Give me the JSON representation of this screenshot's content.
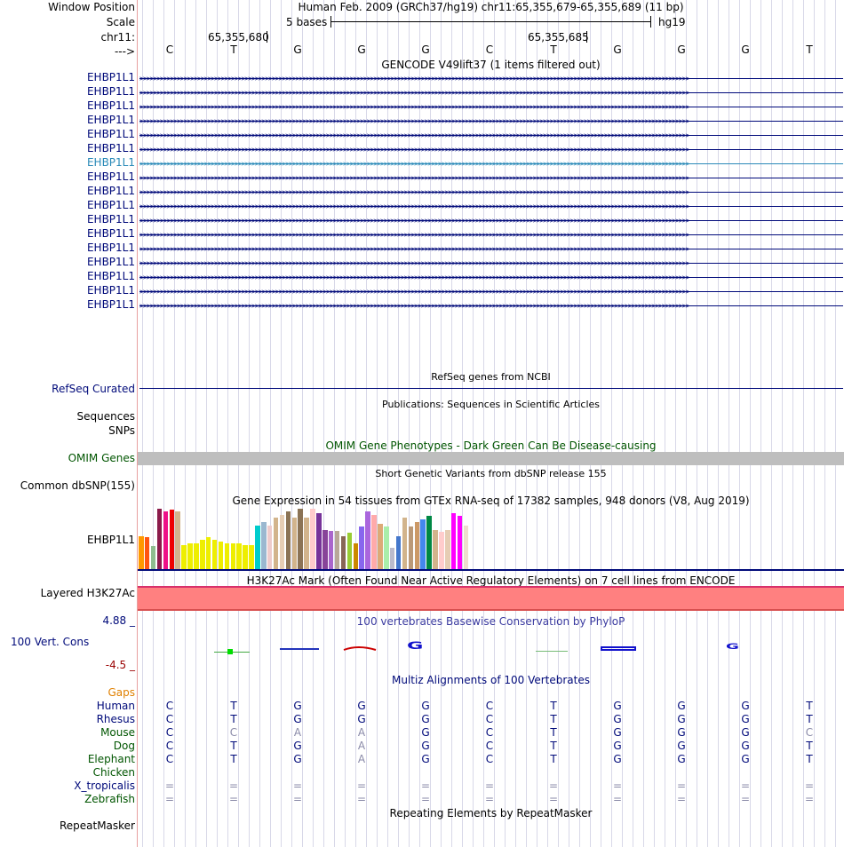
{
  "header": {
    "window_position_label": "Window Position",
    "window_position_value": "Human Feb. 2009 (GRCh37/hg19)   chr11:65,355,679-65,355,689 (11 bp)",
    "scale_label": "Scale",
    "scale_value": "5 bases",
    "assembly": "hg19",
    "chrom_label": "chr11:",
    "coord1": "65,355,680",
    "coord2": "65,355,685",
    "strand_label": "--->"
  },
  "bases": [
    "C",
    "T",
    "G",
    "G",
    "G",
    "C",
    "T",
    "G",
    "G",
    "G",
    "T"
  ],
  "gencode": {
    "title": "GENCODE V49lift37 (1 items filtered out)",
    "gene_name": "EHBP1L1",
    "rows": 17,
    "highlight_row": 6,
    "arrow_text": ">>>>>>>>>>>>>>>>>>>>>>>>>>>>>>>>>>>>>>>>>>>>>>>>>>>>>>>>>>>>>>>>>>>>>>>>>>>>>>>>>>>>>>>>>>>>>>>>>>>>>>>>>>>>>>>>>>>>>>>>>>>>>>>>>>>>>>>>>>>>>>>>>>>>>>>>>>>>>>>>>>"
  },
  "refseq": {
    "title": "RefSeq genes from NCBI",
    "label": "RefSeq Curated"
  },
  "pubs": {
    "title": "Publications: Sequences in Scientific Articles",
    "label1": "Sequences",
    "label2": "SNPs"
  },
  "omim": {
    "title": "OMIM Gene Phenotypes - Dark Green Can Be Disease-causing",
    "label": "OMIM Genes"
  },
  "dbsnp": {
    "title": "Short Genetic Variants from dbSNP release 155",
    "label": "Common dbSNP(155)"
  },
  "gtex": {
    "title": "Gene Expression in 54 tissues from GTEx RNA-seq of 17382 samples, 948 donors (V8, Aug 2019)",
    "label": "EHBP1L1",
    "bar_values": [
      0.55,
      0.53,
      0.38,
      1.0,
      0.95,
      0.98,
      0.95,
      0.4,
      0.43,
      0.43,
      0.48,
      0.53,
      0.48,
      0.45,
      0.43,
      0.43,
      0.43,
      0.4,
      0.4,
      0.72,
      0.78,
      0.72,
      0.85,
      0.9,
      0.95,
      0.85,
      1.0,
      0.86,
      1.0,
      0.92,
      0.65,
      0.63,
      0.63,
      0.55,
      0.6,
      0.42,
      0.7,
      0.95,
      0.9,
      0.75,
      0.7,
      0.35,
      0.55,
      0.85,
      0.7,
      0.78,
      0.82,
      0.88,
      0.65,
      0.62,
      0.65,
      0.92,
      0.88,
      0.72
    ],
    "bar_colors": [
      "#ff9900",
      "#ff5511",
      "#8fbc8f",
      "#8b1a4b",
      "#ee1188",
      "#ee0000",
      "#d2b48c",
      "#eeee00",
      "#eeee00",
      "#eeee00",
      "#eeee00",
      "#eeee00",
      "#eeee00",
      "#eeee00",
      "#eeee00",
      "#eeee00",
      "#eeee00",
      "#eeee00",
      "#eeee00",
      "#00cccc",
      "#9ab8d0",
      "#eecccc",
      "#d2b48c",
      "#e6cdb4",
      "#8b7355",
      "#d2b48c",
      "#8b7355",
      "#d2b48c",
      "#ffcccc",
      "#773399",
      "#884499",
      "#aa66cc",
      "#b8a898",
      "#886655",
      "#99cc33",
      "#cc8800",
      "#8866ee",
      "#aa66dd",
      "#ffaaaa",
      "#ddaa77",
      "#aaeeaa",
      "#bbbbcc",
      "#4477cc",
      "#d2b48c",
      "#bb9977",
      "#cc9966",
      "#4488ee",
      "#008844",
      "#d2b48c",
      "#ffcccc",
      "#e6cdb4",
      "#ff00ff",
      "#ff00ff",
      "#eeddcc"
    ]
  },
  "h3k27ac": {
    "title": "H3K27Ac Mark (Often Found Near Active Regulatory Elements) on 7 cell lines from ENCODE",
    "label": "Layered H3K27Ac"
  },
  "phylop": {
    "title": "100 vertebrates Basewise Conservation by PhyloP",
    "label": "100 Vert. Cons",
    "max": "4.88 _",
    "min": "-4.5 _"
  },
  "multiz": {
    "title": "Multiz Alignments of 100 Vertebrates",
    "species": [
      {
        "name": "Gaps",
        "color": "#e08000",
        "bases": []
      },
      {
        "name": "Human",
        "color": "#000a7a",
        "bases": [
          "C",
          "T",
          "G",
          "G",
          "G",
          "C",
          "T",
          "G",
          "G",
          "G",
          "T"
        ]
      },
      {
        "name": "Rhesus",
        "color": "#000a7a",
        "bases": [
          "C",
          "T",
          "G",
          "G",
          "G",
          "C",
          "T",
          "G",
          "G",
          "G",
          "T"
        ]
      },
      {
        "name": "Mouse",
        "color": "#005500",
        "bases": [
          "C",
          "C",
          "A",
          "A",
          "G",
          "C",
          "T",
          "G",
          "G",
          "G",
          "C"
        ]
      },
      {
        "name": "Dog",
        "color": "#005500",
        "bases": [
          "C",
          "T",
          "G",
          "A",
          "G",
          "C",
          "T",
          "G",
          "G",
          "G",
          "T"
        ]
      },
      {
        "name": "Elephant",
        "color": "#005500",
        "bases": [
          "C",
          "T",
          "G",
          "A",
          "G",
          "C",
          "T",
          "G",
          "G",
          "G",
          "T"
        ]
      },
      {
        "name": "Chicken",
        "color": "#005500",
        "bases": []
      },
      {
        "name": "X_tropicalis",
        "color": "#000a7a",
        "bases": [
          "=",
          "=",
          "=",
          "=",
          "=",
          "=",
          "=",
          "=",
          "=",
          "=",
          "="
        ]
      },
      {
        "name": "Zebrafish",
        "color": "#005500",
        "bases": [
          "=",
          "=",
          "=",
          "=",
          "=",
          "=",
          "=",
          "=",
          "=",
          "=",
          "="
        ]
      }
    ],
    "mismatch": [
      [],
      [],
      [],
      [
        1,
        2,
        3,
        10
      ],
      [
        3
      ],
      [
        3
      ],
      [],
      [
        0,
        1,
        2,
        3,
        4,
        5,
        6,
        7,
        8,
        9,
        10
      ],
      [
        0,
        1,
        2,
        3,
        4,
        5,
        6,
        7,
        8,
        9,
        10
      ]
    ]
  },
  "rmsk": {
    "title": "Repeating Elements by RepeatMasker",
    "label": "RepeatMasker"
  }
}
